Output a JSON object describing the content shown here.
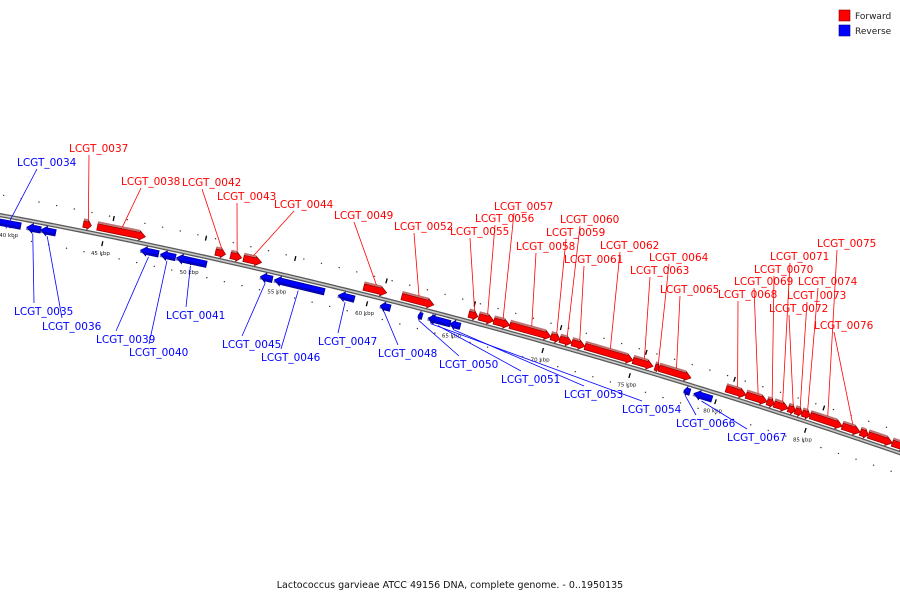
{
  "caption": "Lactococcus garvieae ATCC 49156 DNA, complete genome. - 0..1950135",
  "legend": [
    {
      "label": "Forward",
      "color": "#ff0000"
    },
    {
      "label": "Reverse",
      "color": "#0000ff"
    }
  ],
  "colors": {
    "forward": "#ff0000",
    "reverse": "#0000ff",
    "backbone": "#8c8c8c"
  },
  "ticks": [
    "40 kbp",
    "45 kbp",
    "50 kbp",
    "55 kbp",
    "60 kbp",
    "65 kbp",
    "70 kbp",
    "75 kbp",
    "80 kbp",
    "85 kbp"
  ],
  "genes": [
    {
      "id": "LCGT_0034",
      "strand": "reverse"
    },
    {
      "id": "LCGT_0035",
      "strand": "reverse"
    },
    {
      "id": "LCGT_0036",
      "strand": "reverse"
    },
    {
      "id": "LCGT_0037",
      "strand": "forward"
    },
    {
      "id": "LCGT_0038",
      "strand": "forward"
    },
    {
      "id": "LCGT_0039",
      "strand": "reverse"
    },
    {
      "id": "LCGT_0040",
      "strand": "reverse"
    },
    {
      "id": "LCGT_0041",
      "strand": "reverse"
    },
    {
      "id": "LCGT_0042",
      "strand": "forward"
    },
    {
      "id": "LCGT_0043",
      "strand": "forward"
    },
    {
      "id": "LCGT_0044",
      "strand": "forward"
    },
    {
      "id": "LCGT_0045",
      "strand": "reverse"
    },
    {
      "id": "LCGT_0046",
      "strand": "reverse"
    },
    {
      "id": "LCGT_0047",
      "strand": "reverse"
    },
    {
      "id": "LCGT_0048",
      "strand": "reverse"
    },
    {
      "id": "LCGT_0049",
      "strand": "forward"
    },
    {
      "id": "LCGT_0050",
      "strand": "reverse"
    },
    {
      "id": "LCGT_0051",
      "strand": "reverse"
    },
    {
      "id": "LCGT_0052",
      "strand": "forward"
    },
    {
      "id": "LCGT_0053",
      "strand": "reverse"
    },
    {
      "id": "LCGT_0054",
      "strand": "reverse"
    },
    {
      "id": "LCGT_0055",
      "strand": "forward"
    },
    {
      "id": "LCGT_0056",
      "strand": "forward"
    },
    {
      "id": "LCGT_0057",
      "strand": "forward"
    },
    {
      "id": "LCGT_0058",
      "strand": "forward"
    },
    {
      "id": "LCGT_0059",
      "strand": "forward"
    },
    {
      "id": "LCGT_0060",
      "strand": "forward"
    },
    {
      "id": "LCGT_0061",
      "strand": "forward"
    },
    {
      "id": "LCGT_0062",
      "strand": "forward"
    },
    {
      "id": "LCGT_0063",
      "strand": "forward"
    },
    {
      "id": "LCGT_0064",
      "strand": "forward"
    },
    {
      "id": "LCGT_0065",
      "strand": "forward"
    },
    {
      "id": "LCGT_0066",
      "strand": "reverse"
    },
    {
      "id": "LCGT_0067",
      "strand": "reverse"
    },
    {
      "id": "LCGT_0068",
      "strand": "forward"
    },
    {
      "id": "LCGT_0069",
      "strand": "forward"
    },
    {
      "id": "LCGT_0070",
      "strand": "forward"
    },
    {
      "id": "LCGT_0071",
      "strand": "forward"
    },
    {
      "id": "LCGT_0072",
      "strand": "forward"
    },
    {
      "id": "LCGT_0073",
      "strand": "forward"
    },
    {
      "id": "LCGT_0074",
      "strand": "forward"
    },
    {
      "id": "LCGT_0075",
      "strand": "forward"
    },
    {
      "id": "LCGT_0076",
      "strand": "forward"
    }
  ]
}
